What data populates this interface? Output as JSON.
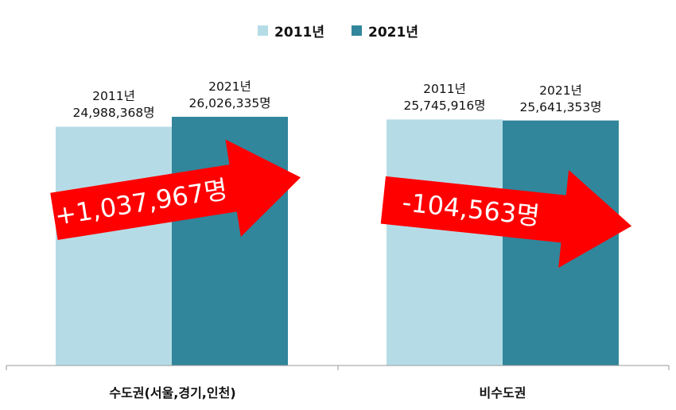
{
  "chart_data": {
    "type": "bar",
    "categories": [
      "수도권(서울,경기,인천)",
      "비수도권"
    ],
    "series": [
      {
        "name": "2011년",
        "color": "#b5dce6",
        "values": [
          24988368,
          25745916
        ]
      },
      {
        "name": "2021년",
        "color": "#31869b",
        "values": [
          26026335,
          25641353
        ]
      }
    ],
    "bar_labels": [
      [
        {
          "year": "2011년",
          "value": "24,988,368명"
        },
        {
          "year": "2021년",
          "value": "26,026,335명"
        }
      ],
      [
        {
          "year": "2011년",
          "value": "25,745,916명"
        },
        {
          "year": "2021년",
          "value": "25,641,353명"
        }
      ]
    ],
    "annotations": [
      "+1,037,967명",
      "-104,563명"
    ],
    "annotation_color": "#ff0000",
    "legend_position": "top",
    "grid": false
  }
}
